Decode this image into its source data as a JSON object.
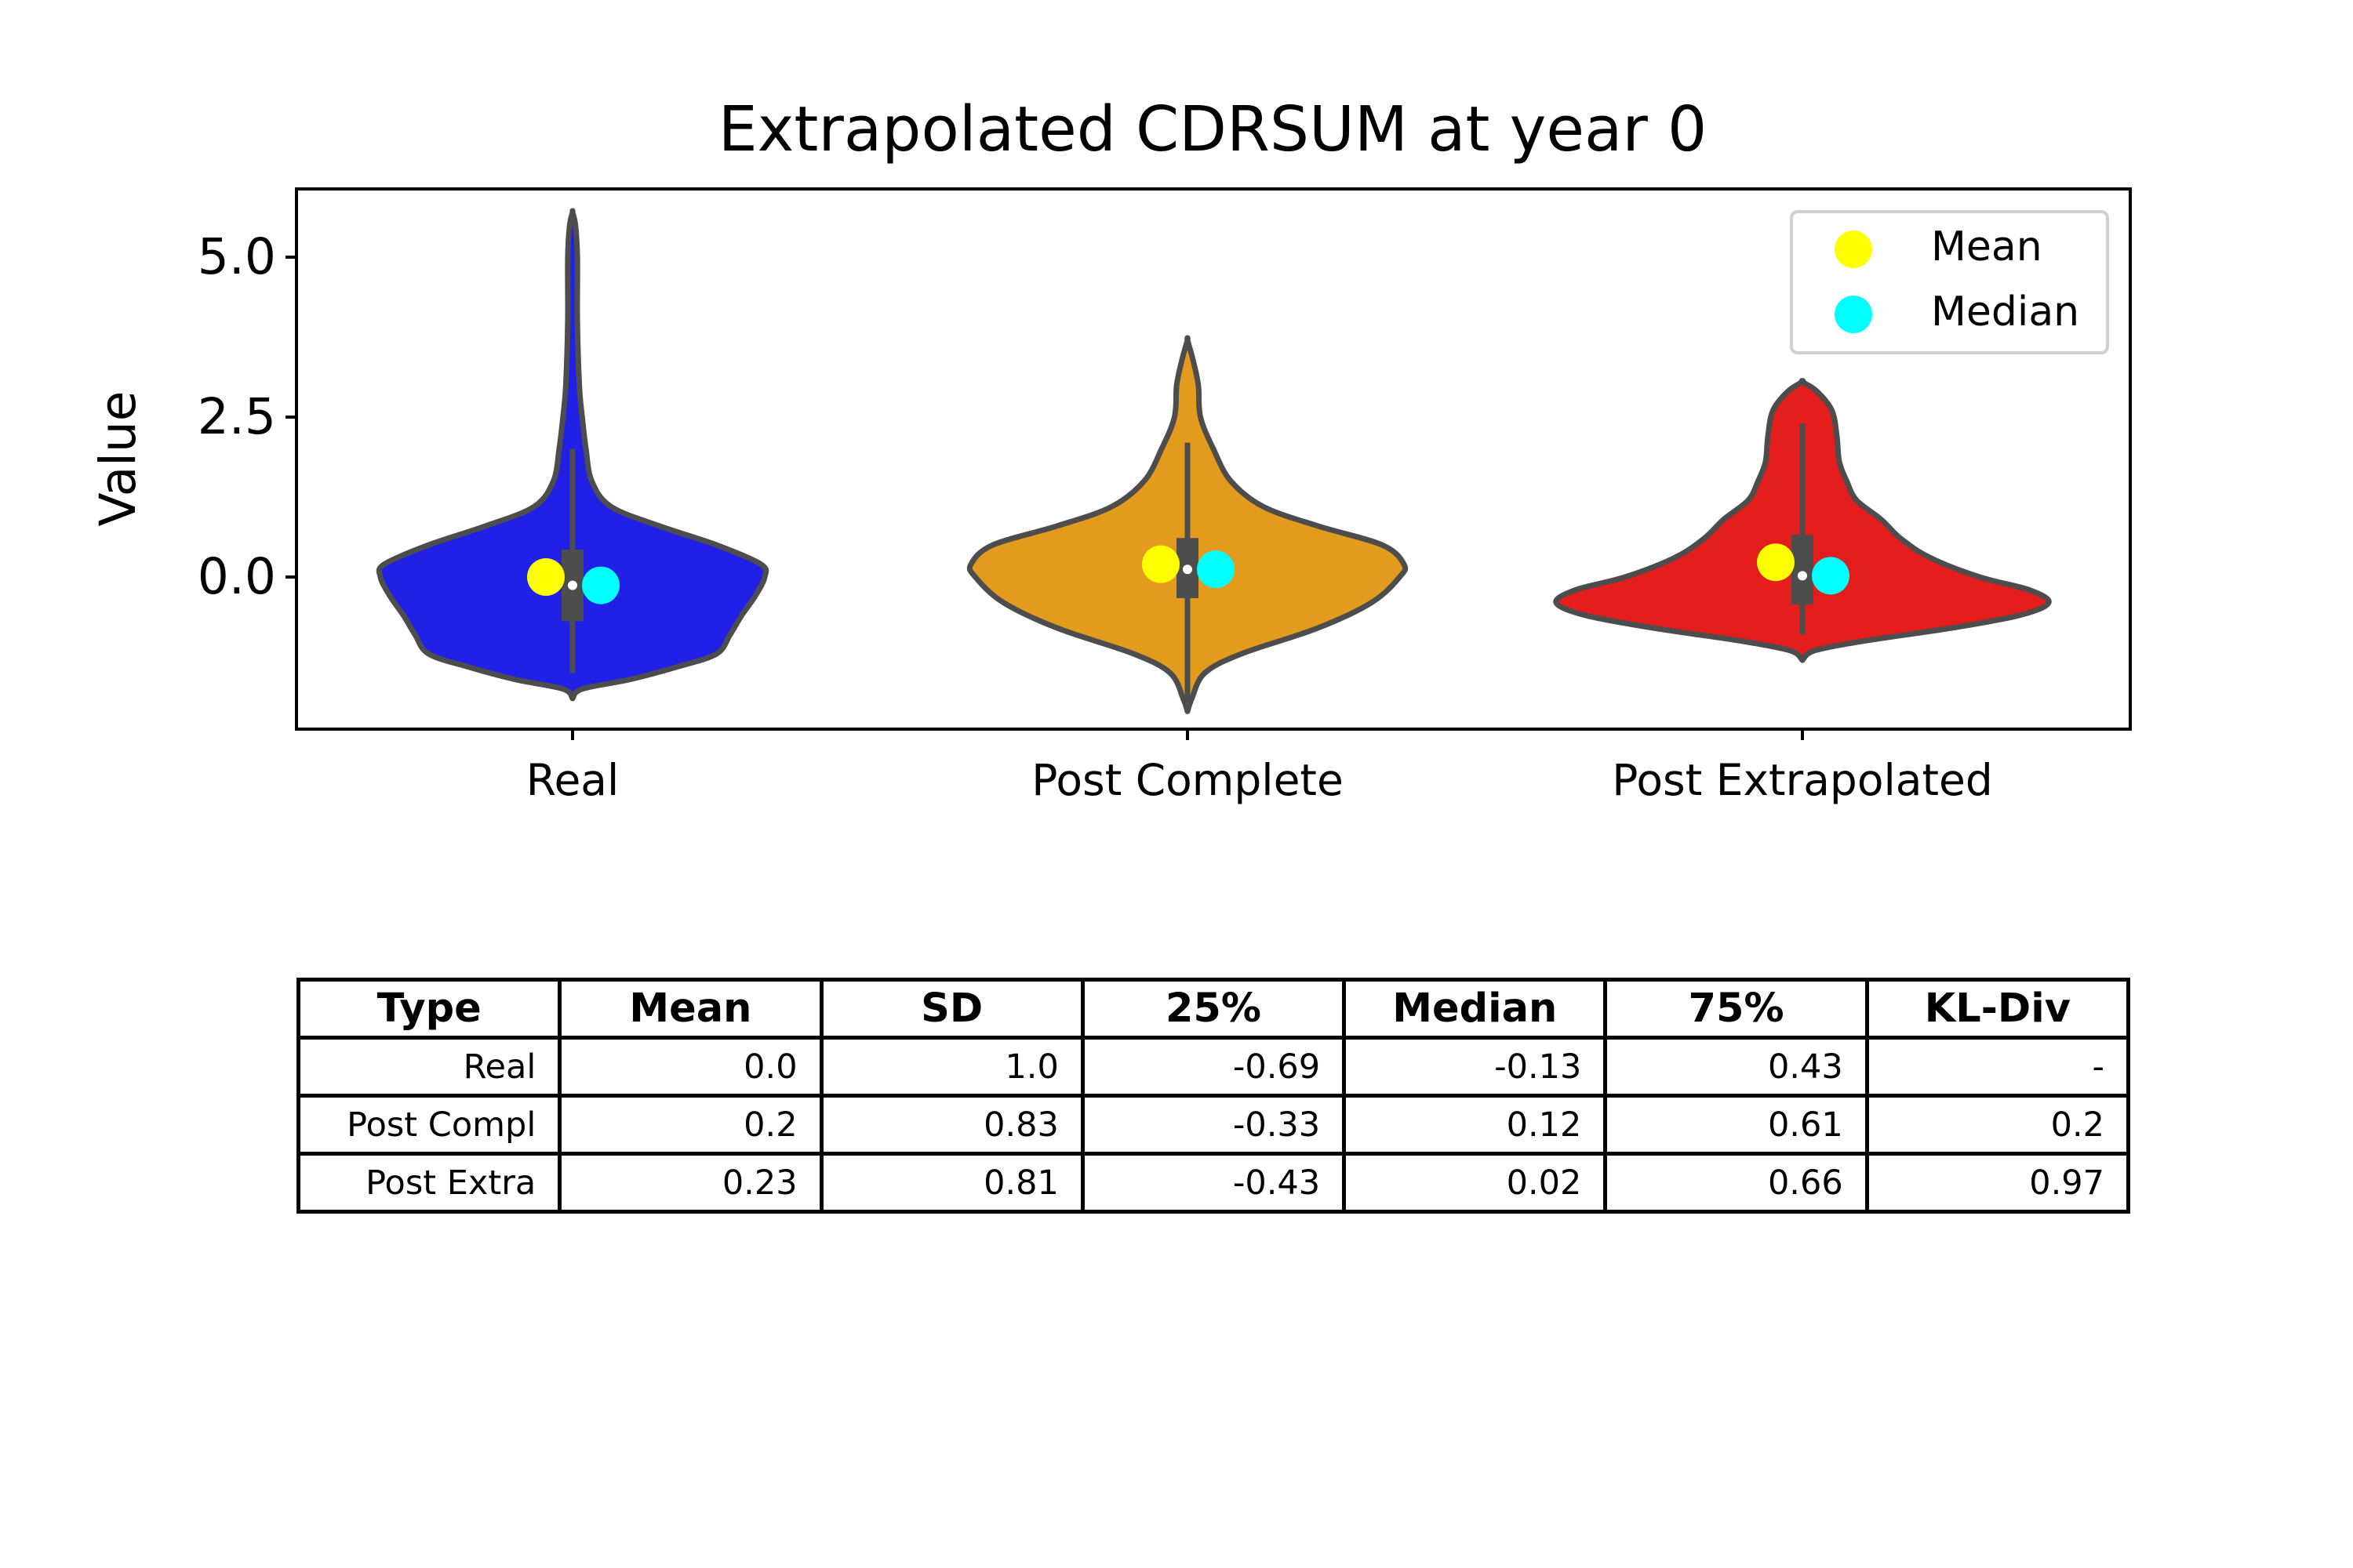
{
  "chart_data": {
    "type": "violin",
    "title": "Extrapolated CDRSUM at year 0",
    "xlabel": "",
    "ylabel": "Value",
    "ylim": [
      -2.4,
      6.1
    ],
    "yticks": [
      "5.0",
      "2.5",
      "0.0"
    ],
    "ytick_values": [
      5.0,
      2.5,
      0.0
    ],
    "grid": false,
    "legend": {
      "placement": "top-right",
      "entries": [
        {
          "name": "Mean",
          "color": "#ffff00"
        },
        {
          "name": "Median",
          "color": "#00ffff"
        }
      ]
    },
    "colors": {
      "outline": "#4d4d4d",
      "mean": "#ffff00",
      "median": "#00ffff",
      "median_dot": "#ffffff"
    },
    "series": [
      {
        "category": "Real",
        "fill": "#2020e6",
        "mean": 0.0,
        "median": -0.13,
        "q1": -0.69,
        "q3": 0.43,
        "whisker": [
          -1.5,
          2.0
        ],
        "range": [
          -1.9,
          5.7
        ],
        "density": [
          [
            -1.9,
            0.0
          ],
          [
            -1.75,
            0.05
          ],
          [
            -1.6,
            0.3
          ],
          [
            -1.4,
            0.55
          ],
          [
            -1.2,
            0.75
          ],
          [
            -0.9,
            0.82
          ],
          [
            -0.6,
            0.88
          ],
          [
            -0.3,
            0.95
          ],
          [
            0.0,
            1.0
          ],
          [
            0.2,
            0.98
          ],
          [
            0.5,
            0.75
          ],
          [
            0.8,
            0.45
          ],
          [
            1.1,
            0.2
          ],
          [
            1.5,
            0.1
          ],
          [
            2.0,
            0.07
          ],
          [
            2.5,
            0.05
          ],
          [
            3.0,
            0.035
          ],
          [
            4.0,
            0.025
          ],
          [
            5.0,
            0.025
          ],
          [
            5.5,
            0.015
          ],
          [
            5.7,
            0.0
          ]
        ]
      },
      {
        "category": "Post Complete",
        "fill": "#e39b1e",
        "mean": 0.2,
        "median": 0.12,
        "q1": -0.33,
        "q3": 0.61,
        "whisker": [
          -2.1,
          2.1
        ],
        "range": [
          -2.1,
          3.7
        ],
        "density": [
          [
            -2.1,
            0.0
          ],
          [
            -1.9,
            0.02
          ],
          [
            -1.5,
            0.08
          ],
          [
            -1.2,
            0.25
          ],
          [
            -0.8,
            0.6
          ],
          [
            -0.4,
            0.85
          ],
          [
            0.0,
            0.98
          ],
          [
            0.2,
            1.0
          ],
          [
            0.5,
            0.9
          ],
          [
            0.8,
            0.6
          ],
          [
            1.1,
            0.35
          ],
          [
            1.5,
            0.2
          ],
          [
            2.0,
            0.12
          ],
          [
            2.5,
            0.06
          ],
          [
            3.0,
            0.05
          ],
          [
            3.4,
            0.025
          ],
          [
            3.7,
            0.0
          ]
        ]
      },
      {
        "category": "Post Extrapolated",
        "fill": "#e31c1c",
        "mean": 0.23,
        "median": 0.02,
        "q1": -0.43,
        "q3": 0.66,
        "whisker": [
          -0.9,
          2.4
        ],
        "range": [
          -1.3,
          3.05
        ],
        "density": [
          [
            -1.3,
            0.0
          ],
          [
            -1.15,
            0.05
          ],
          [
            -1.0,
            0.25
          ],
          [
            -0.8,
            0.6
          ],
          [
            -0.6,
            0.88
          ],
          [
            -0.4,
            1.0
          ],
          [
            -0.2,
            0.92
          ],
          [
            0.0,
            0.72
          ],
          [
            0.3,
            0.52
          ],
          [
            0.6,
            0.4
          ],
          [
            0.9,
            0.32
          ],
          [
            1.2,
            0.22
          ],
          [
            1.5,
            0.18
          ],
          [
            1.8,
            0.15
          ],
          [
            2.2,
            0.14
          ],
          [
            2.6,
            0.12
          ],
          [
            2.9,
            0.06
          ],
          [
            3.05,
            0.0
          ]
        ]
      }
    ]
  },
  "table": {
    "headers": [
      "Type",
      "Mean",
      "SD",
      "25%",
      "Median",
      "75%",
      "KL-Div"
    ],
    "rows": [
      [
        "Real",
        "0.0",
        "1.0",
        "-0.69",
        "-0.13",
        "0.43",
        "-"
      ],
      [
        "Post Compl",
        "0.2",
        "0.83",
        "-0.33",
        "0.12",
        "0.61",
        "0.2"
      ],
      [
        "Post Extra",
        "0.23",
        "0.81",
        "-0.43",
        "0.02",
        "0.66",
        "0.97"
      ]
    ]
  }
}
